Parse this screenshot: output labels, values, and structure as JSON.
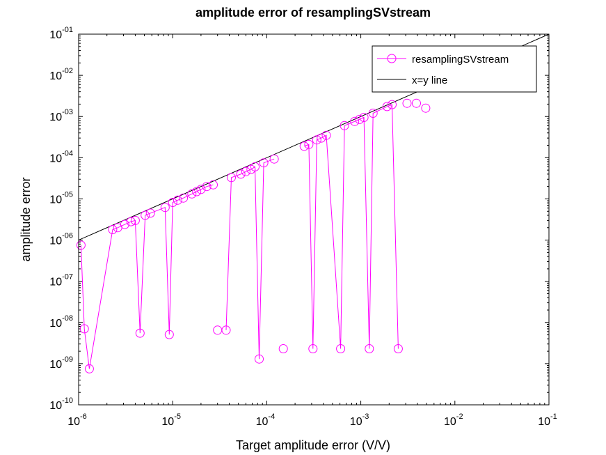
{
  "chart_data": {
    "type": "line",
    "title": "amplitude error of resamplingSVstream",
    "xlabel": "Target amplitude error (V/V)",
    "ylabel": "amplitude error",
    "xscale": "log",
    "yscale": "log",
    "xlim": [
      1e-06,
      0.1
    ],
    "ylim": [
      1e-10,
      0.1
    ],
    "grid": false,
    "legend_position": "top-right",
    "xticks": [
      {
        "value": 1e-06,
        "base": "10",
        "exp": "-6"
      },
      {
        "value": 1e-05,
        "base": "10",
        "exp": "-5"
      },
      {
        "value": 0.0001,
        "base": "10",
        "exp": "-4"
      },
      {
        "value": 0.001,
        "base": "10",
        "exp": "-3"
      },
      {
        "value": 0.01,
        "base": "10",
        "exp": "-2"
      },
      {
        "value": 0.1,
        "base": "10",
        "exp": "-1"
      }
    ],
    "yticks": [
      {
        "value": 1e-10,
        "base": "10",
        "exp": "-10"
      },
      {
        "value": 1e-09,
        "base": "10",
        "exp": "-09"
      },
      {
        "value": 1e-08,
        "base": "10",
        "exp": "-08"
      },
      {
        "value": 1e-07,
        "base": "10",
        "exp": "-07"
      },
      {
        "value": 1e-06,
        "base": "10",
        "exp": "-06"
      },
      {
        "value": 1e-05,
        "base": "10",
        "exp": "-05"
      },
      {
        "value": 0.0001,
        "base": "10",
        "exp": "-04"
      },
      {
        "value": 0.001,
        "base": "10",
        "exp": "-03"
      },
      {
        "value": 0.01,
        "base": "10",
        "exp": "-02"
      },
      {
        "value": 0.1,
        "base": "10",
        "exp": "-01"
      }
    ],
    "series": [
      {
        "name": "resamplingSVstream",
        "color": "#ff00ff",
        "marker": "circle",
        "linestyle": "solid",
        "x": [
          1.06e-06,
          1.15e-06,
          1.3e-06,
          2.3e-06,
          2.6e-06,
          3.1e-06,
          3.6e-06,
          4e-06,
          4.5e-06,
          5.1e-06,
          5.8e-06,
          8.3e-06,
          9.2e-06,
          1e-05,
          1.13e-05,
          1.3e-05,
          1.6e-05,
          1.8e-05,
          2e-05,
          2.3e-05,
          2.7e-05,
          3e-05,
          3.7e-05,
          4.2e-05,
          5.3e-05,
          6e-05,
          6.8e-05,
          7.5e-05,
          8.3e-05,
          9.3e-05,
          0.00012,
          0.00015,
          0.00025,
          0.00028,
          0.00031,
          0.00034,
          0.00038,
          0.00043,
          0.00061,
          0.00067,
          0.00086,
          0.00097,
          0.00108,
          0.00123,
          0.00135,
          0.0019,
          0.00215,
          0.0025,
          0.0031,
          0.0039,
          0.0049
        ],
        "y": [
          7.5e-07,
          7e-09,
          7.5e-10,
          1.8e-06,
          2e-06,
          2.4e-06,
          2.8e-06,
          3e-06,
          5.5e-09,
          4e-06,
          4.5e-06,
          6.2e-06,
          5.1e-09,
          8.2e-06,
          9.3e-06,
          1.05e-05,
          1.32e-05,
          1.5e-05,
          1.7e-05,
          2e-05,
          2.2e-05,
          6.5e-09,
          6.5e-09,
          3.3e-05,
          4e-05,
          4.6e-05,
          5.2e-05,
          6e-05,
          1.3e-09,
          7.5e-05,
          9.3e-05,
          2.3e-09,
          0.00019,
          0.00021,
          2.3e-09,
          0.00027,
          0.0003,
          0.00035,
          2.3e-09,
          0.0006,
          0.00076,
          0.00085,
          0.00095,
          2.3e-09,
          0.0012,
          0.00175,
          0.00195,
          2.3e-09,
          0.0021,
          0.0021,
          0.0016
        ],
        "connected": [
          true,
          true,
          true,
          true,
          true,
          true,
          true,
          true,
          true,
          true,
          true,
          true,
          true,
          true,
          true,
          true,
          true,
          true,
          true,
          true,
          true,
          false,
          true,
          true,
          true,
          true,
          true,
          true,
          true,
          true,
          true,
          false,
          true,
          true,
          true,
          true,
          true,
          true,
          true,
          true,
          true,
          true,
          true,
          true,
          true,
          true,
          true,
          true,
          false,
          false,
          false
        ]
      },
      {
        "name": "x=y line",
        "color": "#000000",
        "marker": "none",
        "linestyle": "solid",
        "x": [
          1e-06,
          0.1
        ],
        "y": [
          1e-06,
          0.1
        ]
      }
    ]
  }
}
